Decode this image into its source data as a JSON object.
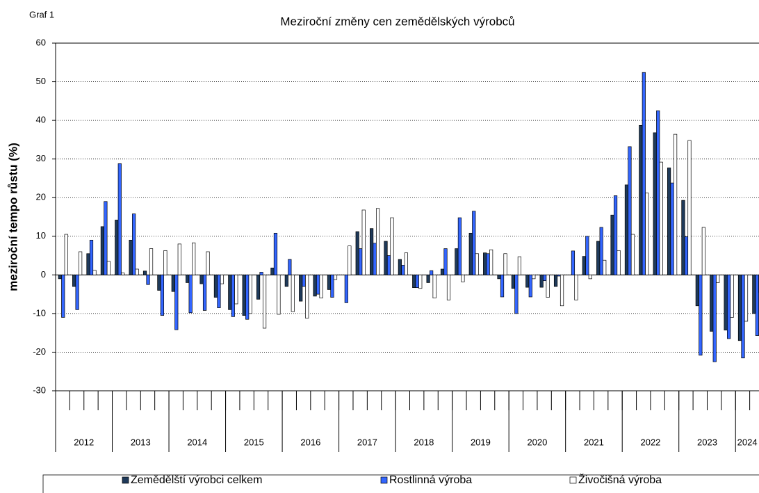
{
  "chart_data": {
    "type": "bar",
    "label": "Graf 1",
    "title": "Meziroční změny cen zemědělských výrobců",
    "y_label": "meziroční tempo růstu (%)",
    "years": [
      "2012",
      "2013",
      "2014",
      "2015",
      "2016",
      "2017",
      "2018",
      "2019",
      "2020",
      "2021",
      "2022",
      "2023",
      "2024"
    ],
    "series": [
      {
        "name": "Zemědělští výrobci celkem",
        "color": "#1f3a5a",
        "values": [
          -1,
          -3,
          5.5,
          12.5,
          14.2,
          9,
          1,
          -4,
          -4.3,
          -2,
          -2.3,
          -5.8,
          -9,
          -10.5,
          -6.3,
          1.8,
          -3,
          -6.8,
          -5.5,
          -3.8,
          0,
          11.2,
          12,
          8.7,
          4,
          -3.3,
          -2,
          1.5,
          6.8,
          10.8,
          5.7,
          -1,
          -3.5,
          -3.2,
          -3.2,
          -3,
          0,
          4.8,
          8.7,
          15.5,
          23.3,
          38.7,
          36.8,
          27.7,
          19.3,
          -8,
          -14.6,
          -14.3,
          -17,
          -10
        ]
      },
      {
        "name": "Rostlinná výroba",
        "color": "#3366ff",
        "values": [
          -11,
          -9,
          9,
          19,
          28.8,
          15.8,
          -2.5,
          -10.5,
          -14.2,
          -9.8,
          -9.2,
          -8.5,
          -10.8,
          -11.5,
          0.7,
          10.8,
          4,
          -3,
          -5,
          -5.8,
          -7.2,
          6.8,
          8.2,
          5,
          2.5,
          -3.3,
          1.1,
          6.8,
          14.8,
          16.5,
          5.5,
          -5.7,
          -10,
          -5.7,
          -1.5,
          -0.3,
          6.2,
          10,
          12.3,
          20.5,
          33.2,
          52.4,
          42.5,
          23.8,
          9.9,
          -20.8,
          -22.5,
          -16.5,
          -21.5,
          -15.7
        ]
      },
      {
        "name": "Živočišná výroba",
        "color": "#ffffff",
        "values": [
          10.5,
          6,
          1.2,
          3.5,
          0.5,
          1.5,
          6.8,
          6.3,
          8,
          8.3,
          6,
          -2.3,
          -7.5,
          -10,
          -13.8,
          -10.2,
          -9.5,
          -11.2,
          -6,
          -1.2,
          7.5,
          16.8,
          17.2,
          14.8,
          5.7,
          -3.5,
          -6,
          -6.5,
          -1.8,
          5.5,
          6.5,
          5.5,
          4.7,
          -1,
          -5.8,
          -8,
          -6.5,
          -1,
          3.8,
          6.3,
          10.5,
          21.2,
          29.2,
          36.4,
          34.8,
          12.3,
          -2,
          -11,
          -12,
          -4.5
        ]
      }
    ],
    "ylim": [
      -30,
      60
    ],
    "yticks": [
      -30,
      -20,
      -10,
      0,
      10,
      20,
      30,
      40,
      50,
      60
    ],
    "grid": true
  }
}
